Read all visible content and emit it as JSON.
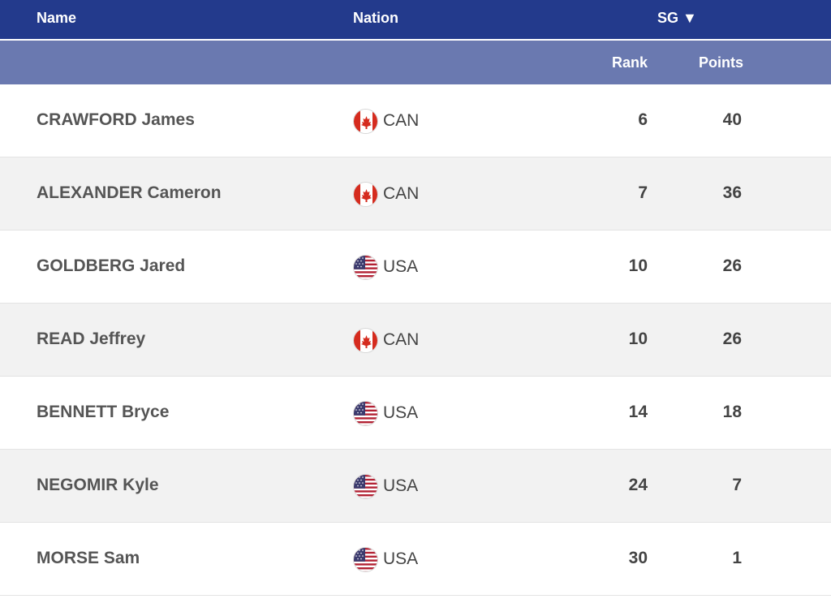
{
  "header": {
    "name_label": "Name",
    "nation_label": "Nation",
    "sg_label": "SG ▼",
    "rank_label": "Rank",
    "points_label": "Points"
  },
  "colors": {
    "header_dark": "#233a8c",
    "header_light": "#6a79b0",
    "row_alt": "#f2f2f2"
  },
  "rows": [
    {
      "name": "CRAWFORD James",
      "nation": "CAN",
      "flag": "canada-flag-icon",
      "rank": "6",
      "points": "40"
    },
    {
      "name": "ALEXANDER Cameron",
      "nation": "CAN",
      "flag": "canada-flag-icon",
      "rank": "7",
      "points": "36"
    },
    {
      "name": "GOLDBERG Jared",
      "nation": "USA",
      "flag": "usa-flag-icon",
      "rank": "10",
      "points": "26"
    },
    {
      "name": "READ Jeffrey",
      "nation": "CAN",
      "flag": "canada-flag-icon",
      "rank": "10",
      "points": "26"
    },
    {
      "name": "BENNETT Bryce",
      "nation": "USA",
      "flag": "usa-flag-icon",
      "rank": "14",
      "points": "18"
    },
    {
      "name": "NEGOMIR Kyle",
      "nation": "USA",
      "flag": "usa-flag-icon",
      "rank": "24",
      "points": "7"
    },
    {
      "name": "MORSE Sam",
      "nation": "USA",
      "flag": "usa-flag-icon",
      "rank": "30",
      "points": "1"
    }
  ]
}
